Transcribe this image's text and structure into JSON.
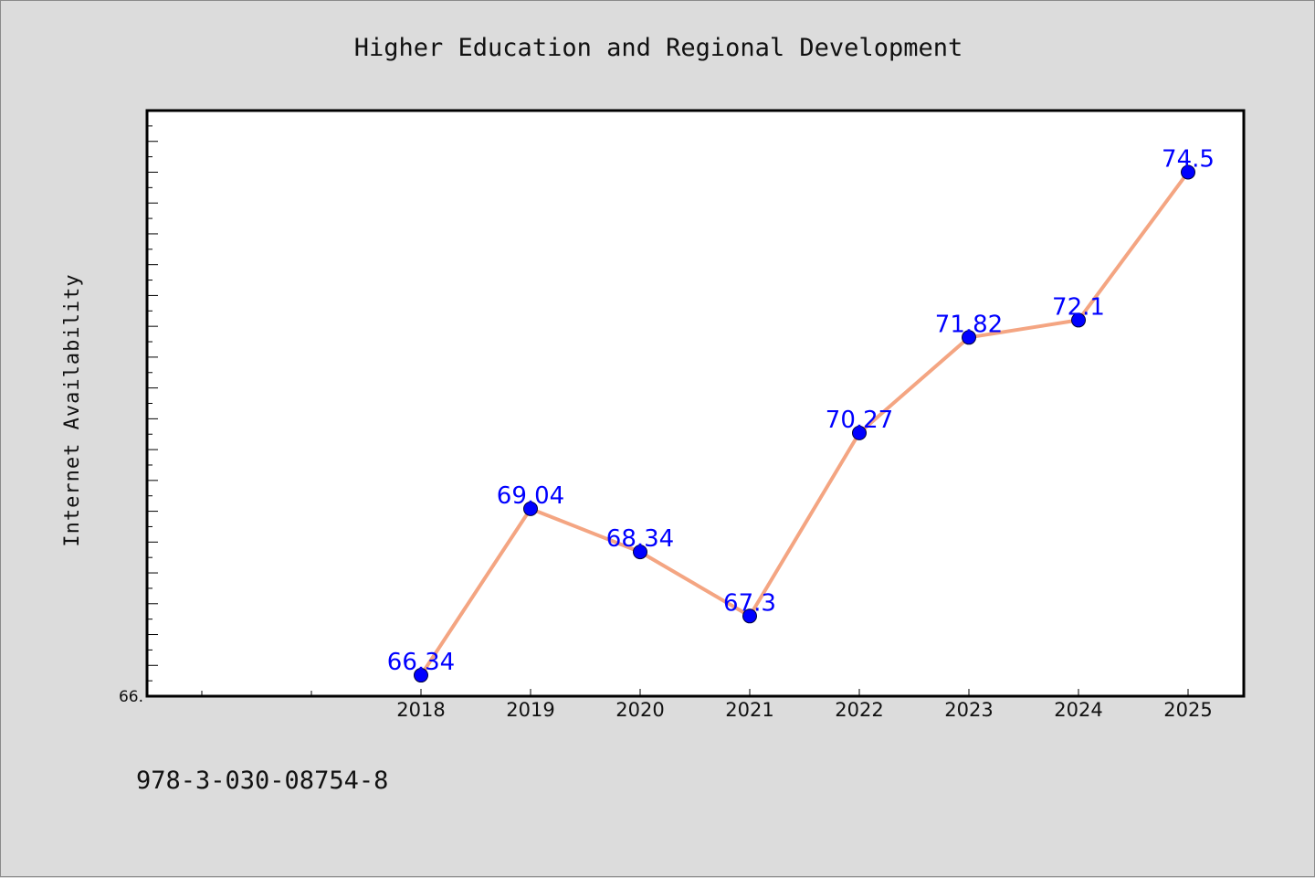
{
  "chart_data": {
    "type": "line",
    "title": "Higher Education and Regional Development",
    "xlabel": "",
    "ylabel": "Internet Availability",
    "x": [
      "2018",
      "2019",
      "2020",
      "2021",
      "2022",
      "2023",
      "2024",
      "2025"
    ],
    "series": [
      {
        "values": [
          66.34,
          69.04,
          68.34,
          67.3,
          70.27,
          71.82,
          72.1,
          74.5
        ],
        "labels": [
          "66.34",
          "69.04",
          "68.34",
          "67.3",
          "70.27",
          "71.82",
          "72.1",
          "74.5"
        ]
      }
    ],
    "ylim": [
      66.0,
      75.5
    ],
    "y_tick_label": "66.",
    "grid": false,
    "legend": "none",
    "colors": {
      "line": "#f4a582",
      "marker": "#0000ff",
      "label": "#0000ff",
      "plot_bg": "#ffffff",
      "page_bg": "#dcdcdc"
    }
  },
  "footer": {
    "code": "978-3-030-08754-8"
  }
}
